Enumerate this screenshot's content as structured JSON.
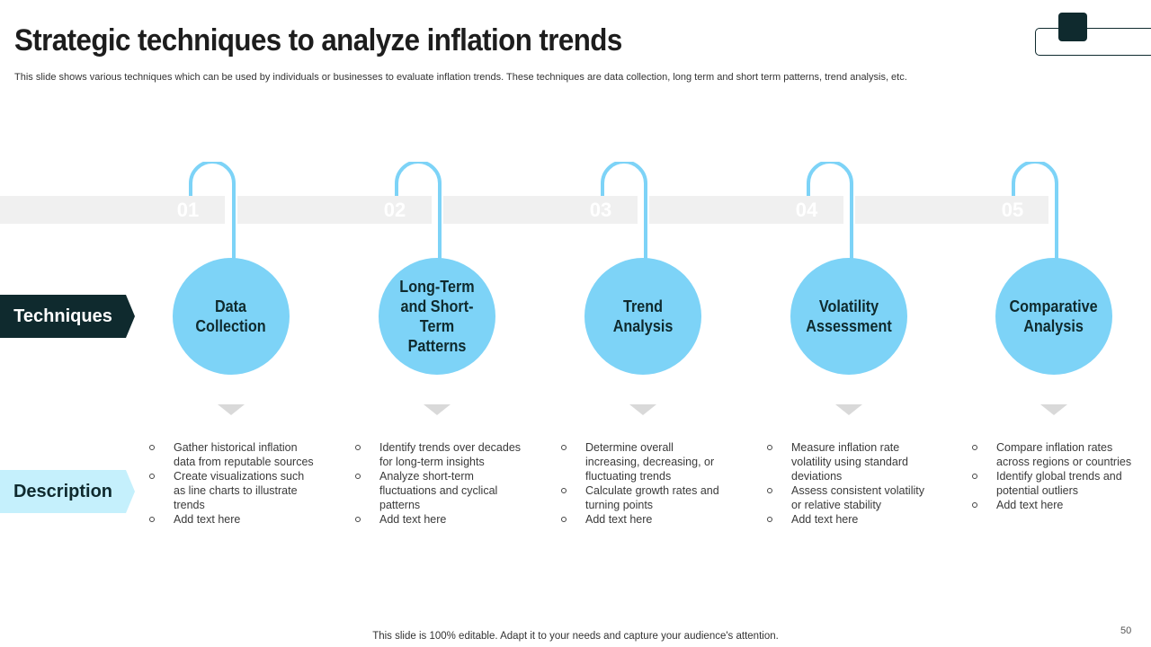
{
  "slide": {
    "title": "Strategic techniques to analyze inflation trends",
    "subtitle": "This slide shows various techniques which can be used by individuals or businesses to evaluate inflation trends. These techniques are data collection, long term and short term patterns,  trend analysis, etc.",
    "footer": "This slide is 100% editable. Adapt it to your needs and capture your audience's attention.",
    "page_number": "50"
  },
  "labels": {
    "techniques": "Techniques",
    "description": "Description"
  },
  "colors": {
    "dark": "#0f2a2e",
    "circle": "#7dd3f7",
    "light_tag": "#c5f0fc",
    "band": "#f0f0f0"
  },
  "steps": [
    {
      "number": "01",
      "title": "Data\nCollection",
      "bullets": [
        "Gather historical inflation data from reputable sources",
        "Create visualizations such as line charts to illustrate trends",
        "Add text here"
      ]
    },
    {
      "number": "02",
      "title": "Long-Term\nand Short-Term\nPatterns",
      "bullets": [
        "Identify trends over decades for long-term insights",
        "Analyze short-term fluctuations and cyclical patterns",
        "Add text here"
      ]
    },
    {
      "number": "03",
      "title": "Trend\nAnalysis",
      "bullets": [
        "Determine overall increasing, decreasing, or fluctuating trends",
        "Calculate growth rates and turning points",
        "Add text here"
      ]
    },
    {
      "number": "04",
      "title": "Volatility\nAssessment",
      "bullets": [
        "Measure inflation rate volatility using standard deviations",
        "Assess consistent volatility or relative  stability",
        "Add text here"
      ]
    },
    {
      "number": "05",
      "title": "Comparative\nAnalysis",
      "bullets": [
        "Compare inflation rates across regions or countries",
        "Identify global trends and potential outliers",
        "Add text here"
      ]
    }
  ]
}
